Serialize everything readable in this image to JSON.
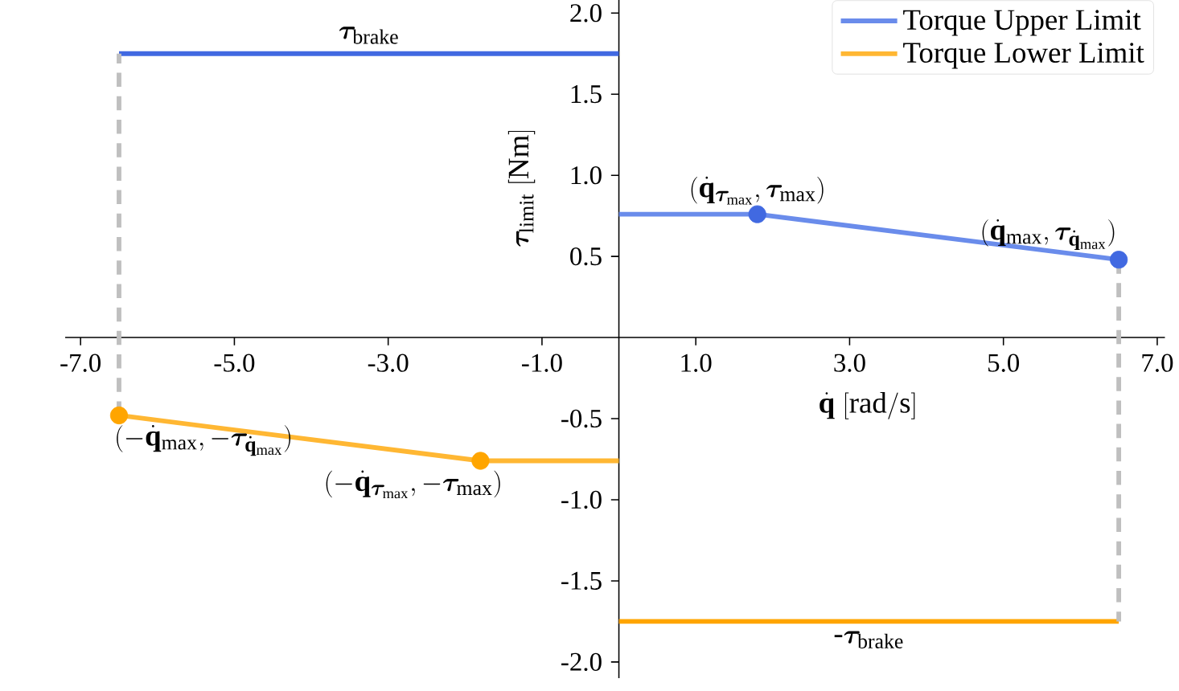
{
  "chart_data": {
    "type": "line",
    "xlabel": "\\dot{\\mathbf{q}}\\ [\\mathrm{rad/s}]",
    "ylabel": "\\bm{\\tau}_{\\mathrm{limit}}\\ [\\mathrm{Nm}]",
    "xlim": [
      -7.2,
      7.1
    ],
    "ylim": [
      -2.1,
      2.1
    ],
    "xticks": [
      {
        "value": -7,
        "label": "-7.0"
      },
      {
        "value": -5,
        "label": "-5.0"
      },
      {
        "value": -3,
        "label": "-3.0"
      },
      {
        "value": -1,
        "label": "-1.0"
      },
      {
        "value": 1,
        "label": "1.0"
      },
      {
        "value": 3,
        "label": "3.0"
      },
      {
        "value": 5,
        "label": "5.0"
      },
      {
        "value": 7,
        "label": "7.0"
      }
    ],
    "yticks": [
      {
        "value": -2,
        "label": "-2.0"
      },
      {
        "value": -1.5,
        "label": "-1.5"
      },
      {
        "value": -1,
        "label": "-1.0"
      },
      {
        "value": -0.5,
        "label": "-0.5"
      },
      {
        "value": 0.5,
        "label": "0.5"
      },
      {
        "value": 1,
        "label": "1.0"
      },
      {
        "value": 1.5,
        "label": "1.5"
      },
      {
        "value": 2,
        "label": "2.0"
      }
    ],
    "legend": "top right",
    "series": [
      {
        "color": "#4169e1",
        "x": [
          -6.5,
          0
        ],
        "values": [
          1.75,
          1.75
        ]
      },
      {
        "color": "#ffa500",
        "x": [
          0,
          6.5
        ],
        "values": [
          -1.75,
          -1.75
        ]
      },
      {
        "color": "#bfbfbf",
        "line_style": "dashed",
        "x": [
          -6.5,
          -6.5
        ],
        "values": [
          -0.48,
          1.75
        ]
      },
      {
        "color": "#bfbfbf",
        "line_style": "dashed",
        "x": [
          6.5,
          6.5
        ],
        "values": [
          0.48,
          -1.75
        ]
      },
      {
        "name": "Torque Upper Limit",
        "color": "#6a8ceb",
        "x": [
          0,
          1.8,
          6.5
        ],
        "values": [
          0.76,
          0.76,
          0.48
        ]
      },
      {
        "name": "Torque Lower Limit",
        "color": "#ffb733",
        "x": [
          -6.5,
          -1.8,
          0
        ],
        "values": [
          -0.48,
          -0.76,
          -0.76
        ]
      },
      {
        "type": "scatter",
        "color": "#4169e1",
        "marker": "circle",
        "x": [
          1.8,
          6.5
        ],
        "values": [
          0.76,
          0.48
        ]
      },
      {
        "type": "scatter",
        "color": "#ffa500",
        "marker": "circle",
        "x": [
          -6.5,
          -1.8
        ],
        "values": [
          -0.48,
          -0.76
        ]
      }
    ],
    "annotations": [
      {
        "text": "(\\dot{\\mathbf{q}}_{\\bm{\\tau}_{\\mathrm{max}}}, \\bm{\\tau}_{\\mathrm{max}})",
        "x": 1.8,
        "y": 0.76
      },
      {
        "text": "(\\dot{\\mathbf{q}}_{\\mathrm{max}}, \\bm{\\tau}_{\\dot{\\mathbf{q}}_{\\mathrm{max}}})",
        "x": 6.5,
        "y": 0.48
      },
      {
        "text": "(-\\dot{\\mathbf{q}}_{\\mathrm{max}}, -\\bm{\\tau}_{\\dot{\\mathbf{q}}_{\\mathrm{max}}})",
        "x": -6.5,
        "y": -0.48
      },
      {
        "text": "(-\\dot{\\mathbf{q}}_{\\bm{\\tau}_{\\mathrm{max}}}, -\\bm{\\tau}_{\\mathrm{max}})",
        "x": -1.8,
        "y": -0.76
      },
      {
        "text": "\\bm{\\tau}_{\\mathrm{brake}}",
        "x": -3.25,
        "y": 1.75
      },
      {
        "text": "\\mbox{-}\\bm{\\tau}_{\\mathrm{brake}}",
        "x": 3.25,
        "y": -1.75
      }
    ]
  }
}
